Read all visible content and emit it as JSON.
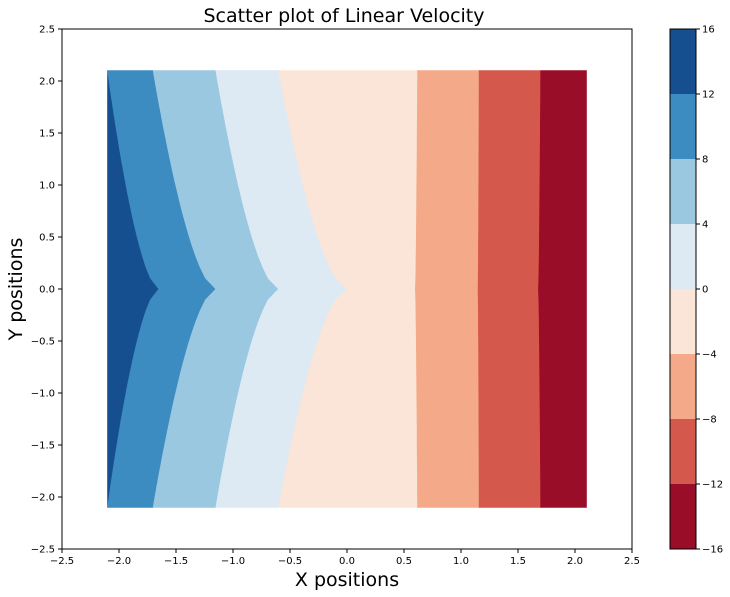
{
  "chart_data": {
    "type": "filled-contour",
    "title": "Scatter plot of Linear Velocity",
    "xlabel": "X positions",
    "ylabel": "Y positions",
    "xlim": [
      -2.5,
      2.5
    ],
    "ylim": [
      -2.5,
      2.5
    ],
    "x_ticks": [
      "−2.5",
      "−2.0",
      "−1.5",
      "−1.0",
      "−0.5",
      "0.0",
      "0.5",
      "1.0",
      "1.5",
      "2.0",
      "2.5"
    ],
    "y_ticks": [
      "−2.5",
      "−2.0",
      "−1.5",
      "−1.0",
      "−0.5",
      "0.0",
      "0.5",
      "1.0",
      "1.5",
      "2.0",
      "2.5"
    ],
    "grid": false,
    "data_domain": {
      "x": [
        -2.1,
        2.1
      ],
      "y": [
        -2.1,
        2.1
      ]
    },
    "contour_boundaries": [
      {
        "level": 12,
        "x_at_y0": -1.65,
        "x_at_edge": -2.1
      },
      {
        "level": 8,
        "x_at_y0": -1.15,
        "x_at_edge": -1.7
      },
      {
        "level": 4,
        "x_at_y0": -0.6,
        "x_at_edge": -1.15
      },
      {
        "level": 0,
        "x_at_y0": 0.0,
        "x_at_edge": -0.6
      },
      {
        "level": -4,
        "x_at_y0": 0.6,
        "x_at_edge": 0.62
      },
      {
        "level": -8,
        "x_at_y0": 1.15,
        "x_at_edge": 1.16
      },
      {
        "level": -12,
        "x_at_y0": 1.68,
        "x_at_edge": 1.7
      },
      {
        "level": -16,
        "x_at_y0": 2.1,
        "x_at_edge": 2.1
      }
    ],
    "bands": [
      {
        "range": [
          12,
          16
        ],
        "color": "#154f8f"
      },
      {
        "range": [
          8,
          12
        ],
        "color": "#3c8bc1"
      },
      {
        "range": [
          4,
          8
        ],
        "color": "#9ac8e1"
      },
      {
        "range": [
          0,
          4
        ],
        "color": "#dde9f3"
      },
      {
        "range": [
          -4,
          0
        ],
        "color": "#fbe5d8"
      },
      {
        "range": [
          -8,
          -4
        ],
        "color": "#f4aa88"
      },
      {
        "range": [
          -12,
          -8
        ],
        "color": "#d4584b"
      },
      {
        "range": [
          -16,
          -12
        ],
        "color": "#9a0d28"
      }
    ],
    "colorbar": {
      "ticks": [
        "−16",
        "−12",
        "−8",
        "−4",
        "0",
        "4",
        "8",
        "12",
        "16"
      ],
      "range": [
        -16,
        16
      ]
    }
  }
}
